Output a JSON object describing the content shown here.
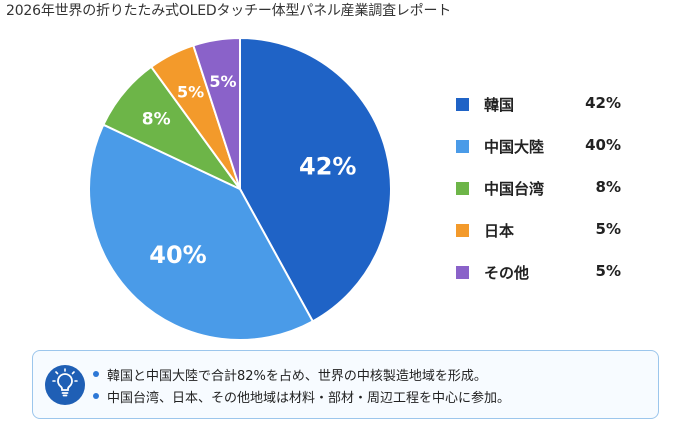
{
  "title": "2026年世界の折りたたみ式OLEDタッチー体型パネル産業調査レポート",
  "chart_data": {
    "type": "pie",
    "categories": [
      "韓国",
      "中国大陸",
      "中国台湾",
      "日本",
      "その他"
    ],
    "values": [
      42,
      40,
      8,
      5,
      5
    ],
    "value_labels": [
      "42%",
      "40%",
      "8%",
      "5%",
      "5%"
    ],
    "colors": [
      "#1f63c6",
      "#4a9be8",
      "#6db548",
      "#f39a2b",
      "#8a62c9"
    ],
    "legend_position": "right"
  },
  "legend": [
    {
      "label": "韓国",
      "value": "42%"
    },
    {
      "label": "中国大陸",
      "value": "40%"
    },
    {
      "label": "中国台湾",
      "value": "8%"
    },
    {
      "label": "日本",
      "value": "5%"
    },
    {
      "label": "その他",
      "value": "5%"
    }
  ],
  "notes": [
    "韓国と中国大陸で合計82%を占め、世界の中核製造地域を形成。",
    "中国台湾、日本、その他地域は材料・部材・周辺工程を中心に参加。"
  ],
  "icon": "lightbulb-icon"
}
